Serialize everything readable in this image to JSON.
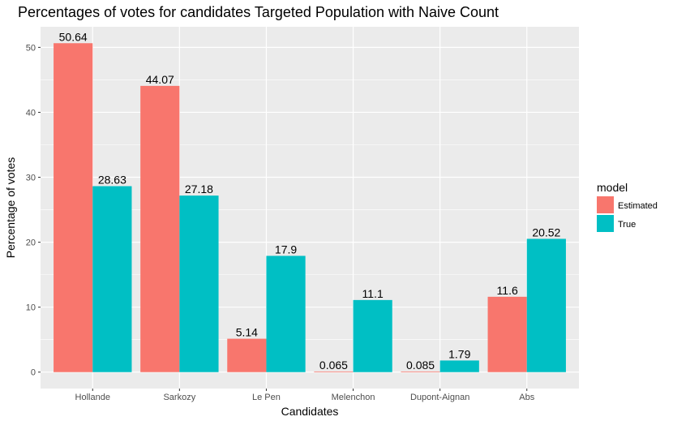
{
  "chart_data": {
    "type": "bar",
    "title": "Percentages of votes for candidates Targeted Population with Naive Count",
    "xlabel": "Candidates",
    "ylabel": "Percentage of votes",
    "categories": [
      "Hollande",
      "Sarkozy",
      "Le Pen",
      "Melenchon",
      "Dupont-Aignan",
      "Abs"
    ],
    "series": [
      {
        "name": "Estimated",
        "color": "#F8766D",
        "values": [
          50.64,
          44.07,
          5.14,
          0.065,
          0.085,
          11.6
        ],
        "labels": [
          "50.64",
          "44.07",
          "5.14",
          "0.065",
          "0.085",
          "11.6"
        ]
      },
      {
        "name": "True",
        "color": "#00BFC4",
        "values": [
          28.63,
          27.18,
          17.9,
          11.1,
          1.79,
          20.52
        ],
        "labels": [
          "28.63",
          "27.18",
          "17.9",
          "11.1",
          "1.79",
          "20.52"
        ]
      }
    ],
    "yticks": [
      0,
      10,
      20,
      30,
      40,
      50
    ],
    "ytick_labels": [
      "0",
      "10",
      "20",
      "30",
      "40",
      "50"
    ],
    "ylim": [
      -2.53,
      53.17
    ],
    "grid": true,
    "legend": {
      "title": "model",
      "position": "right"
    },
    "panel_color": "#EBEBEB",
    "grid_color": "#FFFFFF"
  }
}
